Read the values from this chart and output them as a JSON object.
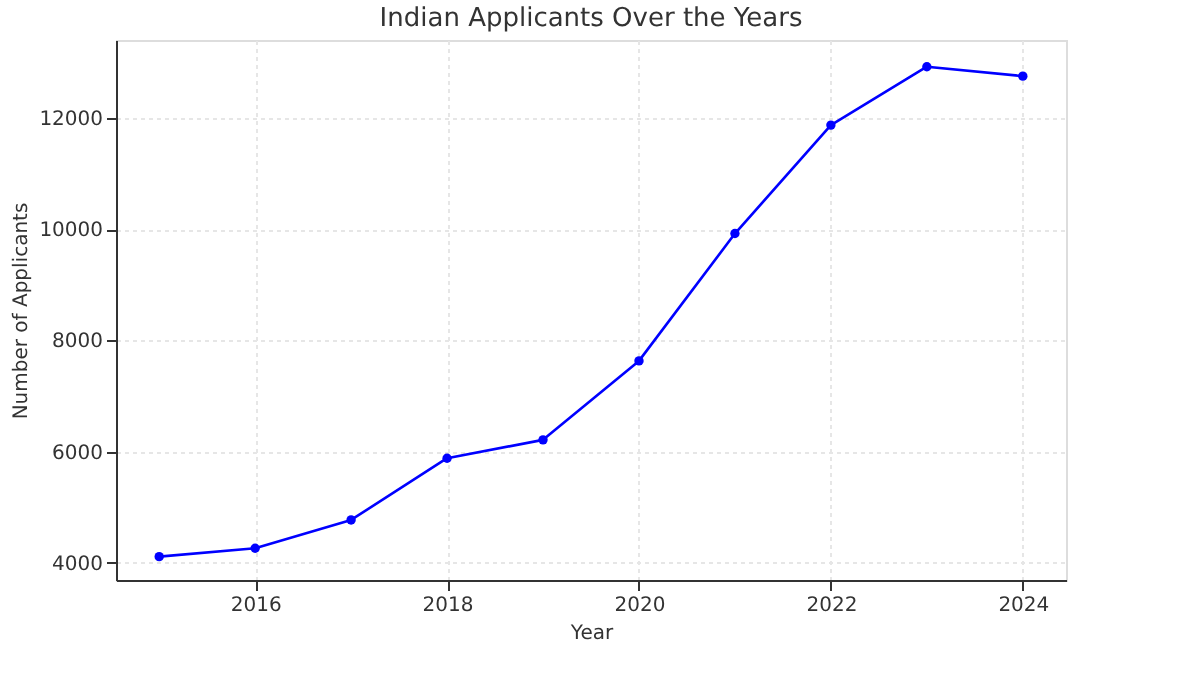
{
  "chart_data": {
    "type": "line",
    "title": "Indian Applicants Over the Years",
    "xlabel": "Year",
    "ylabel": "Number of Applicants",
    "x": [
      2015,
      2016,
      2017,
      2018,
      2019,
      2020,
      2021,
      2022,
      2023,
      2024
    ],
    "series": [
      {
        "color": "#0000ff",
        "values": [
          4110,
          4260,
          4770,
          5880,
          6210,
          7630,
          9920,
          11870,
          12920,
          12750
        ]
      }
    ],
    "xlim": [
      2014.55,
      2024.45
    ],
    "xticks": [
      2016,
      2018,
      2020,
      2022,
      2024
    ],
    "ylim": [
      3690,
      13400
    ],
    "yticks": [
      4000,
      6000,
      8000,
      10000,
      12000
    ],
    "grid": true,
    "marker": "circle",
    "line_style": "solid"
  }
}
